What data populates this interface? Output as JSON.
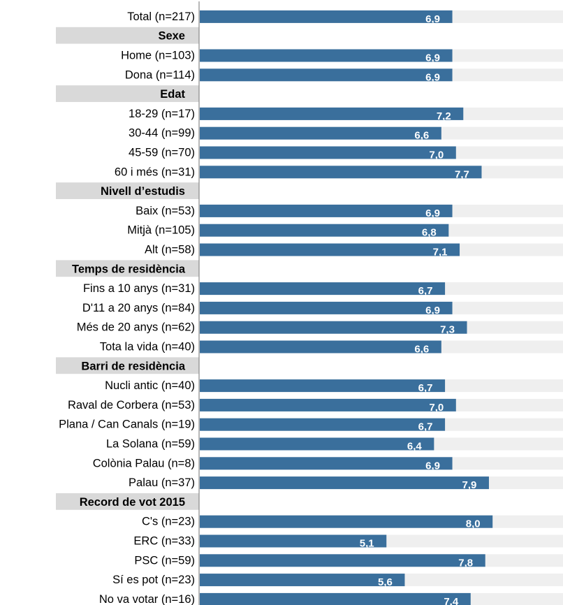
{
  "chart_data": {
    "type": "bar",
    "orientation": "horizontal",
    "xlim": [
      0,
      10
    ],
    "grid": false,
    "colors": {
      "bar": "#3a6f9c",
      "track": "#efefef",
      "header_bg": "#d9d9d9",
      "axis": "#888888",
      "value_text": "#ffffff"
    },
    "rows": [
      {
        "kind": "bar",
        "label": "Total (n=217)",
        "value": 6.9,
        "value_label": "6,9"
      },
      {
        "kind": "header",
        "label": "Sexe"
      },
      {
        "kind": "bar",
        "label": "Home (n=103)",
        "value": 6.9,
        "value_label": "6,9"
      },
      {
        "kind": "bar",
        "label": "Dona (n=114)",
        "value": 6.9,
        "value_label": "6,9"
      },
      {
        "kind": "header",
        "label": "Edat"
      },
      {
        "kind": "bar",
        "label": "18-29 (n=17)",
        "value": 7.2,
        "value_label": "7,2"
      },
      {
        "kind": "bar",
        "label": "30-44 (n=99)",
        "value": 6.6,
        "value_label": "6,6"
      },
      {
        "kind": "bar",
        "label": "45-59 (n=70)",
        "value": 7.0,
        "value_label": "7,0"
      },
      {
        "kind": "bar",
        "label": "60 i més (n=31)",
        "value": 7.7,
        "value_label": "7,7"
      },
      {
        "kind": "header",
        "label": "Nivell d’estudis"
      },
      {
        "kind": "bar",
        "label": "Baix (n=53)",
        "value": 6.9,
        "value_label": "6,9"
      },
      {
        "kind": "bar",
        "label": "Mitjà (n=105)",
        "value": 6.8,
        "value_label": "6,8"
      },
      {
        "kind": "bar",
        "label": "Alt (n=58)",
        "value": 7.1,
        "value_label": "7,1"
      },
      {
        "kind": "header",
        "label": "Temps de residència"
      },
      {
        "kind": "bar",
        "label": "Fins a 10 anys (n=31)",
        "value": 6.7,
        "value_label": "6,7"
      },
      {
        "kind": "bar",
        "label": "D'11 a 20 anys (n=84)",
        "value": 6.9,
        "value_label": "6,9"
      },
      {
        "kind": "bar",
        "label": "Més de 20 anys (n=62)",
        "value": 7.3,
        "value_label": "7,3"
      },
      {
        "kind": "bar",
        "label": "Tota la vida (n=40)",
        "value": 6.6,
        "value_label": "6,6"
      },
      {
        "kind": "header",
        "label": "Barri de residència"
      },
      {
        "kind": "bar",
        "label": "Nucli antic (n=40)",
        "value": 6.7,
        "value_label": "6,7"
      },
      {
        "kind": "bar",
        "label": "Raval de Corbera (n=53)",
        "value": 7.0,
        "value_label": "7,0"
      },
      {
        "kind": "bar",
        "label": "Plana / Can Canals (n=19)",
        "value": 6.7,
        "value_label": "6,7"
      },
      {
        "kind": "bar",
        "label": "La Solana (n=59)",
        "value": 6.4,
        "value_label": "6,4"
      },
      {
        "kind": "bar",
        "label": "Colònia Palau (n=8)",
        "value": 6.9,
        "value_label": "6,9"
      },
      {
        "kind": "bar",
        "label": "Palau (n=37)",
        "value": 7.9,
        "value_label": "7,9"
      },
      {
        "kind": "header",
        "label": "Record de vot 2015"
      },
      {
        "kind": "bar",
        "label": "C's (n=23)",
        "value": 8.0,
        "value_label": "8,0"
      },
      {
        "kind": "bar",
        "label": "ERC  (n=33)",
        "value": 5.1,
        "value_label": "5,1"
      },
      {
        "kind": "bar",
        "label": "PSC (n=59)",
        "value": 7.8,
        "value_label": "7,8"
      },
      {
        "kind": "bar",
        "label": "Sí es pot (n=23)",
        "value": 5.6,
        "value_label": "5,6"
      },
      {
        "kind": "bar",
        "label": "No va votar (n=16)",
        "value": 7.4,
        "value_label": "7,4"
      }
    ]
  }
}
